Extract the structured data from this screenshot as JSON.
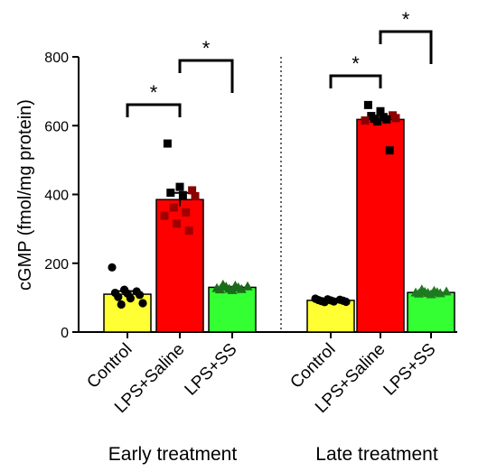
{
  "chart_data": {
    "type": "bar",
    "ylabel": "cGMP (fmol/mg protein)",
    "ylim": [
      0,
      800
    ],
    "yticks": [
      0,
      200,
      400,
      600,
      800
    ],
    "groups": [
      {
        "name": "Early treatment",
        "bars": [
          {
            "category": "Control",
            "value": 110,
            "color": "#ffff33",
            "points": [
              188,
              123,
              118,
              114,
              112,
              108,
              102,
              98,
              84,
              80
            ]
          },
          {
            "category": "LPS+Saline",
            "value": 385,
            "color": "#ff0000",
            "points": [
              548,
              422,
              412,
              405,
              398,
              395,
              362,
              348,
              338,
              315,
              295
            ]
          },
          {
            "category": "LPS+SS",
            "value": 130,
            "color": "#33ff33",
            "points": [
              138,
              135,
              133,
              132,
              130,
              128,
              126,
              125,
              124,
              122
            ]
          }
        ],
        "significance": [
          {
            "from": 0,
            "to": 1,
            "label": "*"
          },
          {
            "from": 1,
            "to": 2,
            "label": "*"
          }
        ]
      },
      {
        "name": "Late treatment",
        "bars": [
          {
            "category": "Control",
            "value": 92,
            "color": "#ffff33",
            "points": [
              97,
              95,
              94,
              93,
              92,
              91,
              90,
              89,
              88,
              87
            ]
          },
          {
            "category": "LPS+Saline",
            "value": 618,
            "color": "#ff0000",
            "points": [
              660,
              642,
              630,
              628,
              625,
              622,
              620,
              618,
              615,
              612,
              528
            ]
          },
          {
            "category": "LPS+SS",
            "value": 115,
            "color": "#33ff33",
            "points": [
              124,
              120,
              118,
              117,
              116,
              115,
              114,
              113,
              112,
              110
            ]
          }
        ],
        "significance": [
          {
            "from": 0,
            "to": 1,
            "label": "*"
          },
          {
            "from": 1,
            "to": 2,
            "label": "*"
          }
        ]
      }
    ],
    "divider": "dotted",
    "grid": false,
    "legend": "none"
  }
}
